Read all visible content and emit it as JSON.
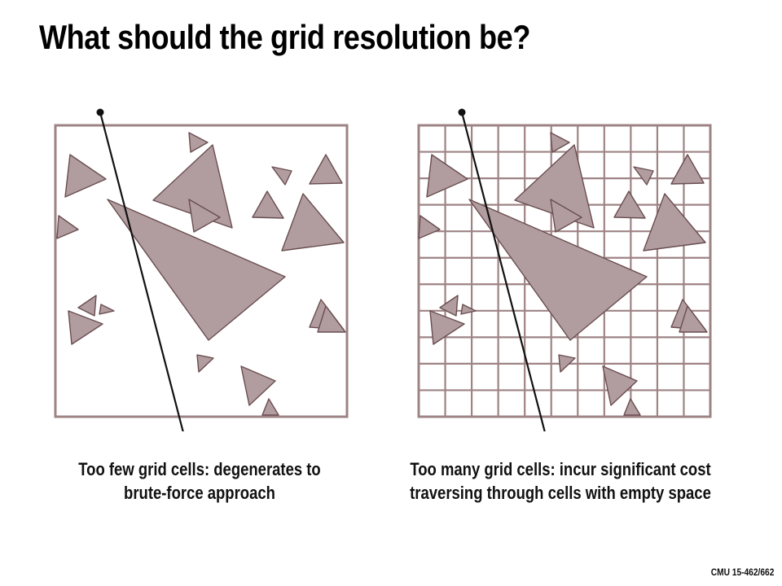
{
  "slide": {
    "title": "What should the grid resolution be?",
    "footer": "CMU 15-462/662"
  },
  "left_panel": {
    "caption_line1": "Too few grid cells: degenerates to",
    "caption_line2": "brute-force approach",
    "grid_divisions": 1
  },
  "right_panel": {
    "caption_line1": "Too many grid cells: incur significant cost",
    "caption_line2": "traversing through cells with empty space",
    "grid_divisions": 11
  },
  "colors": {
    "triangle_fill": "#b19d9f",
    "triangle_stroke": "#6a4d50",
    "grid_line": "#9e8385",
    "ray": "#111111"
  }
}
